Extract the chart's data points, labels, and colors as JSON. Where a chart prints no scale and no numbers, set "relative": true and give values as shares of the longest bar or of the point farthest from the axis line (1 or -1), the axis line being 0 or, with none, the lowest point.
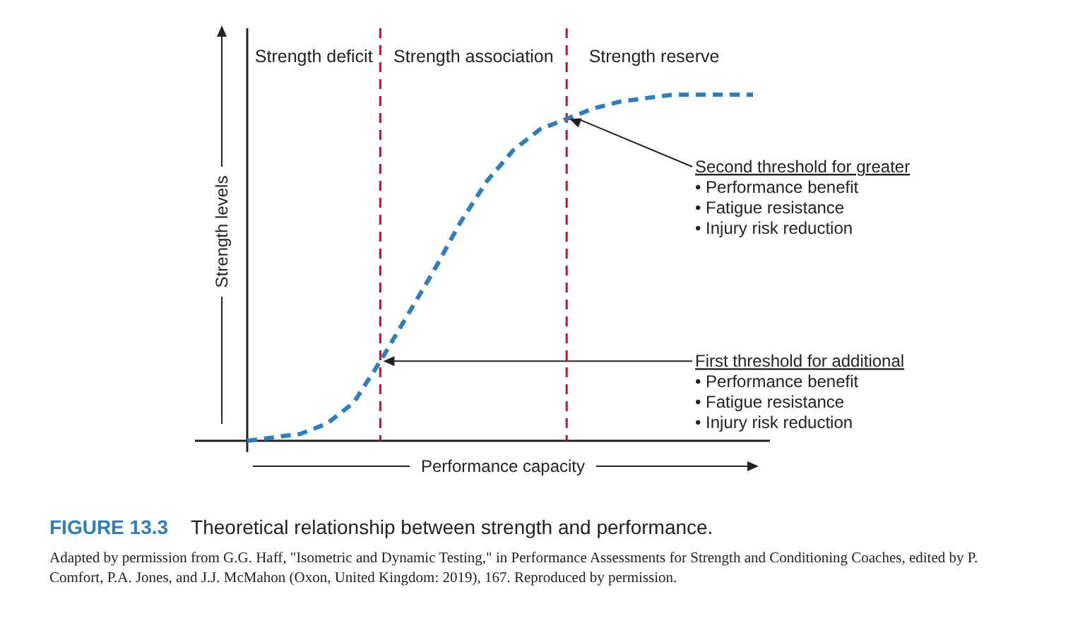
{
  "chart_data": {
    "type": "line",
    "title": "FIGURE 13.3",
    "subtitle": "Theoretical relationship between strength and performance.",
    "xlabel": "Performance capacity",
    "ylabel": "Strength levels",
    "relative": true,
    "marker": "none",
    "line_style": "dashed",
    "categories": [
      null,
      null,
      null,
      null,
      null,
      null,
      null,
      null,
      null,
      null,
      null,
      null,
      null,
      null,
      null,
      null,
      null,
      null,
      null,
      null
    ],
    "series": [
      {
        "color": "#2e7dbd",
        "values": [
          0,
          0.01,
          0.02,
          0.05,
          0.11,
          0.23,
          0.36,
          0.49,
          0.63,
          0.75,
          0.84,
          0.9,
          0.93,
          0.96,
          0.98,
          0.99,
          1,
          1,
          1,
          1
        ]
      }
    ],
    "annotations": [
      "Strength deficit",
      "Strength association",
      "Strength reserve",
      "First threshold for additional\n• Performance benefit\n• Fatigue resistance\n• Injury risk reduction",
      "Second threshold for greater\n• Performance benefit\n• Fatigue resistance\n• Injury risk reduction",
      "Adapted by permission from G.G. Haff, \"Isometric and Dynamic Testing,\" in Performance Assessments for Strength and Conditioning Coaches, edited by P. Comfort, P.A. Jones, and J.J. McMahon (Oxon, United Kingdom: 2019), 167. Reproduced by permission."
    ]
  }
}
